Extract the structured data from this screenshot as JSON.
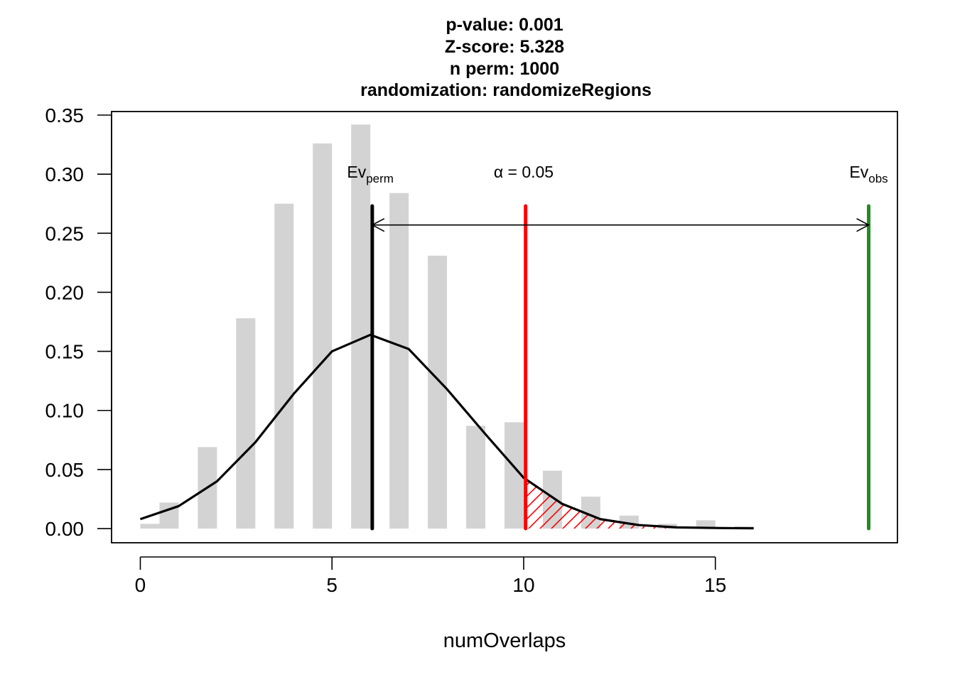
{
  "chart_data": {
    "type": "bar",
    "title_lines": [
      "p-value:  0.001",
      "Z-score:  5.328",
      "n perm:  1000",
      "randomization:  randomizeRegions"
    ],
    "xlabel": "numOverlaps",
    "ylabel": "",
    "xlim": [
      -0.75,
      19.75
    ],
    "ylim": [
      -0.012,
      0.353
    ],
    "x_ticks": [
      0,
      5,
      10,
      15
    ],
    "x_tick_labels": [
      "0",
      "5",
      "10",
      "15"
    ],
    "y_ticks": [
      0,
      0.05,
      0.1,
      0.15,
      0.2,
      0.25,
      0.3,
      0.35
    ],
    "y_tick_labels": [
      "0.00",
      "0.05",
      "0.10",
      "0.15",
      "0.20",
      "0.25",
      "0.30",
      "0.35"
    ],
    "histogram": {
      "bar_width": 0.5,
      "color": "#d3d3d3",
      "bars": [
        {
          "x_start": 0.0,
          "value": 0.004
        },
        {
          "x_start": 0.5,
          "value": 0.022
        },
        {
          "x_start": 1.5,
          "value": 0.069
        },
        {
          "x_start": 2.5,
          "value": 0.178
        },
        {
          "x_start": 3.5,
          "value": 0.275
        },
        {
          "x_start": 4.5,
          "value": 0.326
        },
        {
          "x_start": 5.5,
          "value": 0.342
        },
        {
          "x_start": 6.5,
          "value": 0.284
        },
        {
          "x_start": 7.5,
          "value": 0.231
        },
        {
          "x_start": 8.5,
          "value": 0.087
        },
        {
          "x_start": 9.5,
          "value": 0.09
        },
        {
          "x_start": 10.5,
          "value": 0.049
        },
        {
          "x_start": 11.5,
          "value": 0.027
        },
        {
          "x_start": 12.5,
          "value": 0.011
        },
        {
          "x_start": 13.5,
          "value": 0.004
        },
        {
          "x_start": 14.5,
          "value": 0.007
        },
        {
          "x_start": 15.5,
          "value": 0.002
        }
      ]
    },
    "density_curve": {
      "color": "#000000",
      "x": [
        0,
        1,
        2,
        3,
        4,
        5,
        6,
        7,
        8,
        9,
        10,
        11,
        12,
        13,
        14,
        15,
        16
      ],
      "y": [
        0.008,
        0.019,
        0.04,
        0.073,
        0.114,
        0.15,
        0.164,
        0.152,
        0.118,
        0.08,
        0.043,
        0.021,
        0.008,
        0.003,
        0.001,
        0.0005,
        0.0002
      ]
    },
    "vertical_lines": [
      {
        "name": "Ev_perm",
        "x": 6.05,
        "y_top": 0.273,
        "color": "#000000"
      },
      {
        "name": "alpha",
        "x": 10.05,
        "y_top": 0.273,
        "color": "#ff0000"
      },
      {
        "name": "Ev_obs",
        "x": 19.0,
        "y_top": 0.273,
        "color": "#228b22"
      }
    ],
    "arrow": {
      "x_from": 6.05,
      "x_to": 19.0,
      "y": 0.257
    },
    "shaded_region": {
      "x_from": 10.05,
      "x_to": 16,
      "pattern": "hatch",
      "color": "#ff0000"
    },
    "annotations": [
      {
        "main": "Ev",
        "sub": "perm",
        "x": 6.0,
        "y": 0.3
      },
      {
        "main": "α = 0.05",
        "sub": "",
        "x": 10.0,
        "y": 0.3
      },
      {
        "main": "Ev",
        "sub": "obs",
        "x": 19.0,
        "y": 0.3
      }
    ]
  }
}
